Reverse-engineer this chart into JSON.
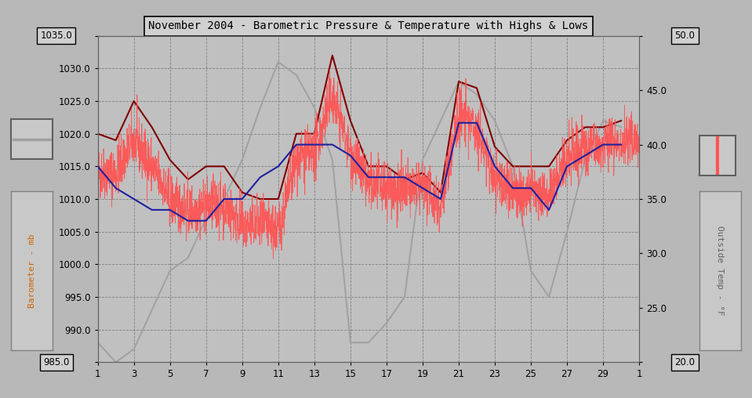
{
  "title": "November 2004 - Barometric Pressure & Temperature with Highs & Lows",
  "left_label": "Barometer - mb",
  "right_label": "Outside Temp - °F",
  "bg_color": "#b8b8b8",
  "plot_bg_color": "#c0c0c0",
  "grid_color": "#808080",
  "ylim_left": [
    985.0,
    1035.0
  ],
  "ylim_right": [
    20.0,
    50.0
  ],
  "yticks_left": [
    985.0,
    990.0,
    995.0,
    1000.0,
    1005.0,
    1010.0,
    1015.0,
    1020.0,
    1025.0,
    1030.0,
    1035.0
  ],
  "yticks_right": [
    20.0,
    25.0,
    30.0,
    35.0,
    40.0,
    45.0,
    50.0
  ],
  "xlim": [
    1,
    31
  ],
  "gray_color": "#a0a0a0",
  "darkred_color": "#800000",
  "red_color": "#ff5555",
  "blue_color": "#2020a0",
  "gray_line_data": [
    988,
    985,
    987,
    993,
    999,
    1001,
    1007,
    1010,
    1016,
    1024,
    1031,
    1029,
    1024,
    1016,
    988,
    988,
    991,
    995,
    1016,
    1022,
    1028,
    1026,
    1022,
    1015,
    999,
    995,
    1005,
    1016,
    1022,
    1021
  ],
  "darkred_data": [
    1020,
    1019,
    1025,
    1021,
    1016,
    1013,
    1015,
    1015,
    1011,
    1010,
    1010,
    1020,
    1020,
    1032,
    1022,
    1015,
    1015,
    1013,
    1014,
    1011,
    1028,
    1027,
    1018,
    1015,
    1015,
    1015,
    1019,
    1021,
    1021,
    1022
  ],
  "blue_temp_f": [
    38,
    36,
    35,
    34,
    34,
    33,
    33,
    35,
    35,
    37,
    38,
    40,
    40,
    40,
    39,
    37,
    37,
    37,
    36,
    35,
    42,
    42,
    38,
    36,
    36,
    34,
    38,
    39,
    40,
    40
  ],
  "red_base_f": [
    1014,
    1014,
    1019,
    1015,
    1010,
    1008,
    1009,
    1009,
    1006,
    1006,
    1005,
    1016,
    1017,
    1026,
    1017,
    1012,
    1012,
    1011,
    1012,
    1009,
    1023,
    1021,
    1013,
    1011,
    1011,
    1011,
    1016,
    1018,
    1018,
    1019
  ]
}
